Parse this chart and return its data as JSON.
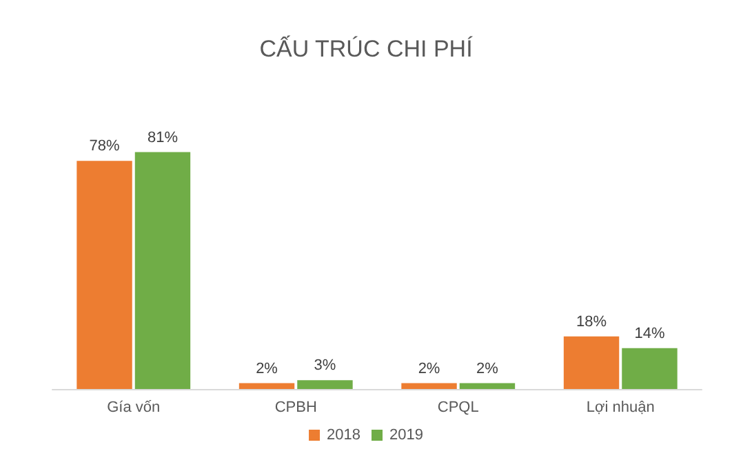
{
  "chart_data": {
    "type": "bar",
    "title": "CẤU TRÚC CHI PHÍ",
    "categories": [
      "Gía vốn",
      "CPBH",
      "CPQL",
      "Lợi nhuận"
    ],
    "series": [
      {
        "name": "2018",
        "color": "#ed7d31",
        "values": [
          78,
          2,
          2,
          18
        ],
        "value_labels": [
          "78%",
          "2%",
          "2%",
          "18%"
        ]
      },
      {
        "name": "2019",
        "color": "#70ad47",
        "values": [
          81,
          3,
          2,
          14
        ],
        "value_labels": [
          "81%",
          "3%",
          "2%",
          "14%"
        ]
      }
    ],
    "legend": "bottom"
  }
}
